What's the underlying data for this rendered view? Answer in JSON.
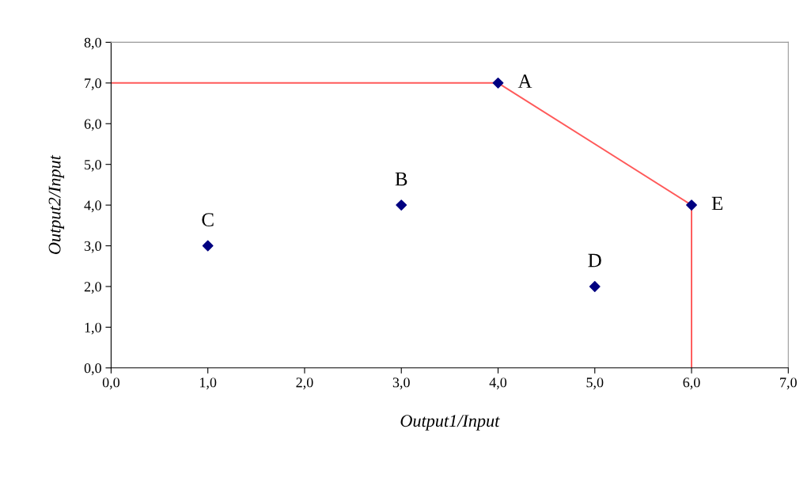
{
  "chart_data": {
    "type": "scatter",
    "xlabel": "Output1/Input",
    "ylabel": "Output2/Input",
    "series": [
      {
        "type": "line",
        "color": "#ff5a5a",
        "x": [
          0,
          4,
          6,
          6
        ],
        "values": [
          7,
          7,
          4,
          0
        ],
        "marker": "none"
      },
      {
        "color": "#000080",
        "x": [
          4,
          3,
          1,
          5,
          6
        ],
        "values": [
          7,
          4,
          3,
          2,
          4
        ],
        "marker": "diamond"
      }
    ],
    "annotations": [
      {
        "text": "A",
        "x": 4,
        "y": 7
      },
      {
        "text": "B",
        "x": 3,
        "y": 4
      },
      {
        "text": "C",
        "x": 1,
        "y": 3
      },
      {
        "text": "D",
        "x": 5,
        "y": 2
      },
      {
        "text": "E",
        "x": 6,
        "y": 4
      }
    ],
    "xlim": [
      0,
      7
    ],
    "ylim": [
      0,
      8
    ],
    "xticks": [
      {
        "value": 0,
        "label": "0,0"
      },
      {
        "value": 1,
        "label": "1,0"
      },
      {
        "value": 2,
        "label": "2,0"
      },
      {
        "value": 3,
        "label": "3,0"
      },
      {
        "value": 4,
        "label": "4,0"
      },
      {
        "value": 5,
        "label": "5,0"
      },
      {
        "value": 6,
        "label": "6,0"
      },
      {
        "value": 7,
        "label": "7,0"
      }
    ],
    "yticks": [
      {
        "value": 0,
        "label": "0,0"
      },
      {
        "value": 1,
        "label": "1,0"
      },
      {
        "value": 2,
        "label": "2,0"
      },
      {
        "value": 3,
        "label": "3,0"
      },
      {
        "value": 4,
        "label": "4,0"
      },
      {
        "value": 5,
        "label": "5,0"
      },
      {
        "value": 6,
        "label": "6,0"
      },
      {
        "value": 7,
        "label": "7,0"
      },
      {
        "value": 8,
        "label": "8,0"
      }
    ],
    "grid": false
  }
}
